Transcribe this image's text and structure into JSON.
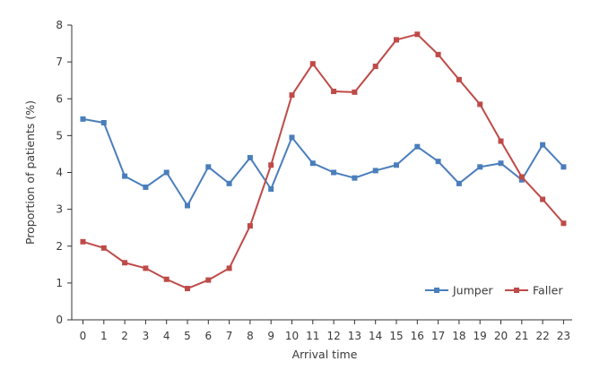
{
  "chart_data": {
    "type": "line",
    "title": "",
    "xlabel": "Arrival time",
    "ylabel": "Proportion of patients (%)",
    "x": [
      0,
      1,
      2,
      3,
      4,
      5,
      6,
      7,
      8,
      9,
      10,
      11,
      12,
      13,
      14,
      15,
      16,
      17,
      18,
      19,
      20,
      21,
      22,
      23
    ],
    "ylim": [
      0,
      8
    ],
    "yticks": [
      0,
      1,
      2,
      3,
      4,
      5,
      6,
      7,
      8
    ],
    "grid": false,
    "legend_position": "bottom-right",
    "series": [
      {
        "name": "Jumper",
        "color": "#4a7ebb",
        "marker": "square",
        "values": [
          5.45,
          5.35,
          3.9,
          3.6,
          4.0,
          3.1,
          4.15,
          3.7,
          4.4,
          3.55,
          4.95,
          4.25,
          4.0,
          3.85,
          4.05,
          4.2,
          4.7,
          4.3,
          3.7,
          4.15,
          4.25,
          3.8,
          4.75,
          4.15
        ]
      },
      {
        "name": "Faller",
        "color": "#be4b48",
        "marker": "square",
        "values": [
          2.12,
          1.95,
          1.55,
          1.4,
          1.1,
          0.85,
          1.08,
          1.4,
          2.55,
          4.2,
          6.1,
          6.95,
          6.2,
          6.18,
          6.88,
          7.6,
          7.75,
          7.2,
          6.52,
          5.85,
          4.85,
          3.88,
          3.27,
          2.62
        ]
      }
    ]
  }
}
